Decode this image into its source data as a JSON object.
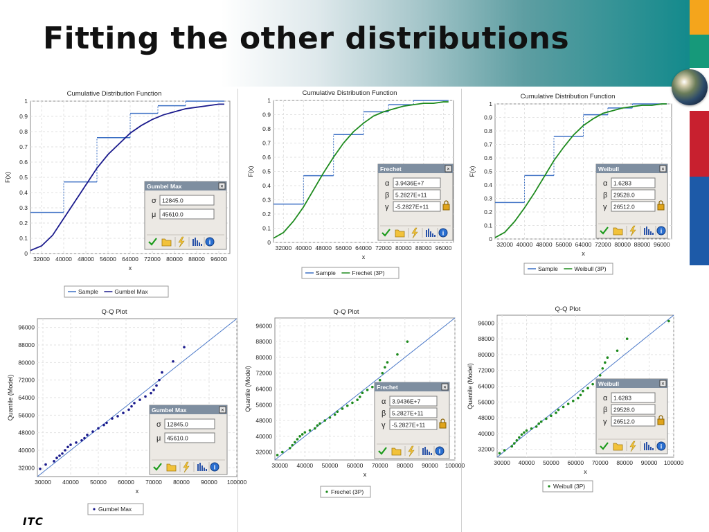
{
  "slide_title": "Fitting the other distributions",
  "logo_text": "ITC",
  "panels": [
    {
      "id": "gumbel",
      "cdf": {
        "title": "Cumulative Distribution Function",
        "xlabel": "x",
        "ylabel": "F(x)",
        "xticks": [
          "32000",
          "40000",
          "48000",
          "56000",
          "64000",
          "72000",
          "80000",
          "88000",
          "96000"
        ],
        "yticks": [
          "0",
          "0.1",
          "0.2",
          "0.3",
          "0.4",
          "0.5",
          "0.6",
          "0.7",
          "0.8",
          "0.9",
          "1"
        ],
        "legend": [
          "Sample",
          "Gumbel Max"
        ]
      },
      "qq": {
        "title": "Q-Q Plot",
        "xlabel": "x",
        "ylabel": "Quantile (Model)",
        "xticks": [
          "30000",
          "40000",
          "50000",
          "60000",
          "70000",
          "80000",
          "90000",
          "100000"
        ],
        "yticks": [
          "32000",
          "40000",
          "48000",
          "56000",
          "64000",
          "72000",
          "80000",
          "88000",
          "96000"
        ],
        "legend": [
          "Gumbel Max"
        ]
      },
      "param_box": {
        "title": "Gumbel Max",
        "params": [
          {
            "symbol": "σ",
            "value": "12845.0"
          },
          {
            "symbol": "μ",
            "value": "45610.0"
          }
        ]
      },
      "series_color": "#1a1a8c"
    },
    {
      "id": "frechet",
      "cdf": {
        "title": "Cumulative Distribution Function",
        "xlabel": "x",
        "ylabel": "F(x)",
        "xticks": [
          "32000",
          "40000",
          "48000",
          "56000",
          "64000",
          "72000",
          "80000",
          "88000",
          "96000"
        ],
        "yticks": [
          "0",
          "0.1",
          "0.2",
          "0.3",
          "0.4",
          "0.5",
          "0.6",
          "0.7",
          "0.8",
          "0.9",
          "1"
        ],
        "legend": [
          "Sample",
          "Frechet (3P)"
        ]
      },
      "qq": {
        "title": "Q-Q Plot",
        "xlabel": "x",
        "ylabel": "Quantile (Model)",
        "xticks": [
          "30000",
          "40000",
          "50000",
          "60000",
          "70000",
          "80000",
          "90000",
          "100000"
        ],
        "yticks": [
          "32000",
          "40000",
          "48000",
          "56000",
          "64000",
          "72000",
          "80000",
          "88000",
          "96000"
        ],
        "legend": [
          "Frechet (3P)"
        ]
      },
      "param_box": {
        "title": "Frechet",
        "params": [
          {
            "symbol": "α",
            "value": "3.9436E+7"
          },
          {
            "symbol": "β",
            "value": "5.2827E+11"
          },
          {
            "symbol": "γ",
            "value": "-5.2827E+11"
          }
        ]
      },
      "series_color": "#1d8a1d"
    },
    {
      "id": "weibull",
      "cdf": {
        "title": "Cumulative Distribution Function",
        "xlabel": "x",
        "ylabel": "F(x)",
        "xticks": [
          "32000",
          "40000",
          "48000",
          "56000",
          "64000",
          "72000",
          "80000",
          "88000",
          "96000"
        ],
        "yticks": [
          "0",
          "0.1",
          "0.2",
          "0.3",
          "0.4",
          "0.5",
          "0.6",
          "0.7",
          "0.8",
          "0.9",
          "1"
        ],
        "legend": [
          "Sample",
          "Weibull (3P)"
        ]
      },
      "qq": {
        "title": "Q-Q Plot",
        "xlabel": "x",
        "ylabel": "Quantile (Model)",
        "xticks": [
          "30000",
          "40000",
          "50000",
          "60000",
          "70000",
          "80000",
          "90000",
          "100000"
        ],
        "yticks": [
          "32000",
          "40000",
          "48000",
          "56000",
          "64000",
          "72000",
          "80000",
          "88000",
          "96000"
        ],
        "legend": [
          "Weibull (3P)"
        ]
      },
      "param_box": {
        "title": "Weibull",
        "params": [
          {
            "symbol": "α",
            "value": "1.6283"
          },
          {
            "symbol": "β",
            "value": "29528.0"
          },
          {
            "symbol": "γ",
            "value": "26512.0"
          }
        ]
      },
      "series_color": "#1d8a1d"
    }
  ],
  "chart_data": [
    {
      "type": "line",
      "chart": "cdf-gumbel",
      "title": "Cumulative Distribution Function",
      "xlabel": "x",
      "ylabel": "F(x)",
      "xlim": [
        28000,
        100000
      ],
      "ylim": [
        0,
        1
      ],
      "series": [
        {
          "name": "Sample",
          "step_x": [
            28000,
            40000,
            52000,
            64000,
            74000,
            84000,
            98000
          ],
          "step_y": [
            0.27,
            0.47,
            0.76,
            0.92,
            0.97,
            1.0,
            1.0
          ]
        },
        {
          "name": "Gumbel Max",
          "x": [
            28000,
            32000,
            36000,
            40000,
            44000,
            48000,
            52000,
            56000,
            60000,
            64000,
            68000,
            72000,
            76000,
            80000,
            84000,
            88000,
            92000,
            96000,
            98000
          ],
          "y": [
            0.02,
            0.05,
            0.12,
            0.23,
            0.34,
            0.45,
            0.56,
            0.65,
            0.72,
            0.79,
            0.84,
            0.88,
            0.91,
            0.93,
            0.95,
            0.96,
            0.97,
            0.98,
            0.98
          ]
        }
      ]
    },
    {
      "type": "line",
      "chart": "cdf-frechet",
      "title": "Cumulative Distribution Function",
      "xlabel": "x",
      "ylabel": "F(x)",
      "xlim": [
        28000,
        100000
      ],
      "ylim": [
        0,
        1
      ],
      "series": [
        {
          "name": "Sample",
          "step_x": [
            28000,
            40000,
            52000,
            64000,
            74000,
            84000,
            98000
          ],
          "step_y": [
            0.27,
            0.47,
            0.76,
            0.92,
            0.97,
            1.0,
            1.0
          ]
        },
        {
          "name": "Frechet (3P)",
          "x": [
            28000,
            32000,
            36000,
            40000,
            44000,
            48000,
            52000,
            56000,
            60000,
            64000,
            68000,
            72000,
            76000,
            80000,
            84000,
            88000,
            92000,
            96000,
            98000
          ],
          "y": [
            0.03,
            0.07,
            0.15,
            0.25,
            0.37,
            0.49,
            0.6,
            0.7,
            0.78,
            0.84,
            0.89,
            0.92,
            0.94,
            0.96,
            0.97,
            0.98,
            0.98,
            0.99,
            0.99
          ]
        }
      ]
    },
    {
      "type": "line",
      "chart": "cdf-weibull",
      "title": "Cumulative Distribution Function",
      "xlabel": "x",
      "ylabel": "F(x)",
      "xlim": [
        28000,
        100000
      ],
      "ylim": [
        0,
        1
      ],
      "series": [
        {
          "name": "Sample",
          "step_x": [
            28000,
            40000,
            52000,
            64000,
            74000,
            84000,
            98000
          ],
          "step_y": [
            0.27,
            0.47,
            0.76,
            0.92,
            0.97,
            1.0,
            1.0
          ]
        },
        {
          "name": "Weibull (3P)",
          "x": [
            28000,
            32000,
            36000,
            40000,
            44000,
            48000,
            52000,
            56000,
            60000,
            64000,
            68000,
            72000,
            76000,
            80000,
            84000,
            88000,
            92000,
            96000,
            98000
          ],
          "y": [
            0.01,
            0.05,
            0.13,
            0.23,
            0.34,
            0.46,
            0.58,
            0.68,
            0.77,
            0.84,
            0.89,
            0.93,
            0.95,
            0.97,
            0.98,
            0.99,
            0.99,
            1.0,
            1.0
          ]
        }
      ]
    },
    {
      "type": "scatter",
      "chart": "qq-gumbel",
      "title": "Q-Q Plot",
      "xlabel": "x",
      "ylabel": "Quantile (Model)",
      "xlim": [
        28000,
        100000
      ],
      "ylim": [
        28000,
        100000
      ],
      "reference_line": [
        [
          28000,
          28000
        ],
        [
          100000,
          100000
        ]
      ],
      "series": [
        {
          "name": "Gumbel Max",
          "points": [
            [
              29000,
              31500
            ],
            [
              31000,
              33500
            ],
            [
              34000,
              35000
            ],
            [
              35000,
              36500
            ],
            [
              36000,
              37500
            ],
            [
              37000,
              38500
            ],
            [
              38000,
              40000
            ],
            [
              39000,
              41500
            ],
            [
              40000,
              42500
            ],
            [
              42000,
              43500
            ],
            [
              44000,
              44500
            ],
            [
              45000,
              45500
            ],
            [
              46000,
              47000
            ],
            [
              48000,
              48500
            ],
            [
              50000,
              50000
            ],
            [
              52000,
              51500
            ],
            [
              53000,
              52500
            ],
            [
              55000,
              54500
            ],
            [
              57000,
              55500
            ],
            [
              59000,
              57000
            ],
            [
              61000,
              58500
            ],
            [
              62000,
              60000
            ],
            [
              63000,
              61500
            ],
            [
              65000,
              63000
            ],
            [
              67000,
              64500
            ],
            [
              69000,
              66000
            ],
            [
              70000,
              67500
            ],
            [
              71000,
              69500
            ],
            [
              72000,
              72000
            ],
            [
              73000,
              75500
            ],
            [
              77000,
              80500
            ],
            [
              81000,
              87000
            ]
          ]
        }
      ]
    },
    {
      "type": "scatter",
      "chart": "qq-frechet",
      "title": "Q-Q Plot",
      "xlabel": "x",
      "ylabel": "Quantile (Model)",
      "xlim": [
        28000,
        100000
      ],
      "ylim": [
        28000,
        100000
      ],
      "reference_line": [
        [
          28000,
          28000
        ],
        [
          100000,
          100000
        ]
      ],
      "series": [
        {
          "name": "Frechet (3P)",
          "points": [
            [
              29000,
              30500
            ],
            [
              31000,
              32000
            ],
            [
              34000,
              34000
            ],
            [
              35000,
              35500
            ],
            [
              36000,
              37000
            ],
            [
              37000,
              38500
            ],
            [
              38000,
              40000
            ],
            [
              39000,
              41000
            ],
            [
              40000,
              42000
            ],
            [
              42000,
              43000
            ],
            [
              44000,
              44000
            ],
            [
              45000,
              45500
            ],
            [
              46000,
              46500
            ],
            [
              48000,
              48000
            ],
            [
              50000,
              49500
            ],
            [
              52000,
              51000
            ],
            [
              53000,
              52500
            ],
            [
              55000,
              54000
            ],
            [
              57000,
              55500
            ],
            [
              59000,
              57000
            ],
            [
              61000,
              58500
            ],
            [
              62000,
              60000
            ],
            [
              63000,
              62000
            ],
            [
              65000,
              63500
            ],
            [
              67000,
              65000
            ],
            [
              69000,
              66500
            ],
            [
              70000,
              68500
            ],
            [
              71000,
              72000
            ],
            [
              72000,
              75000
            ],
            [
              73000,
              77500
            ],
            [
              77000,
              81500
            ],
            [
              81000,
              88000
            ]
          ]
        }
      ]
    },
    {
      "type": "scatter",
      "chart": "qq-weibull",
      "title": "Q-Q Plot",
      "xlabel": "x",
      "ylabel": "Quantile (Model)",
      "xlim": [
        28000,
        100000
      ],
      "ylim": [
        28000,
        100000
      ],
      "reference_line": [
        [
          28000,
          28000
        ],
        [
          100000,
          100000
        ]
      ],
      "series": [
        {
          "name": "Weibull (3P)",
          "points": [
            [
              29000,
              30000
            ],
            [
              31000,
              31500
            ],
            [
              34000,
              33500
            ],
            [
              35000,
              35000
            ],
            [
              36000,
              36500
            ],
            [
              37000,
              38000
            ],
            [
              38000,
              39500
            ],
            [
              39000,
              40500
            ],
            [
              40000,
              41500
            ],
            [
              42000,
              42500
            ],
            [
              44000,
              43500
            ],
            [
              45000,
              45000
            ],
            [
              46000,
              46000
            ],
            [
              48000,
              47500
            ],
            [
              50000,
              49000
            ],
            [
              52000,
              50500
            ],
            [
              53000,
              52000
            ],
            [
              55000,
              53500
            ],
            [
              57000,
              55000
            ],
            [
              59000,
              56500
            ],
            [
              61000,
              58000
            ],
            [
              62000,
              59500
            ],
            [
              63000,
              61500
            ],
            [
              65000,
              63000
            ],
            [
              67000,
              65000
            ],
            [
              69000,
              67000
            ],
            [
              70000,
              69500
            ],
            [
              71000,
              73000
            ],
            [
              72000,
              76000
            ],
            [
              73000,
              78500
            ],
            [
              77000,
              82000
            ],
            [
              81000,
              88000
            ],
            [
              98000,
              97000
            ]
          ]
        }
      ]
    }
  ]
}
